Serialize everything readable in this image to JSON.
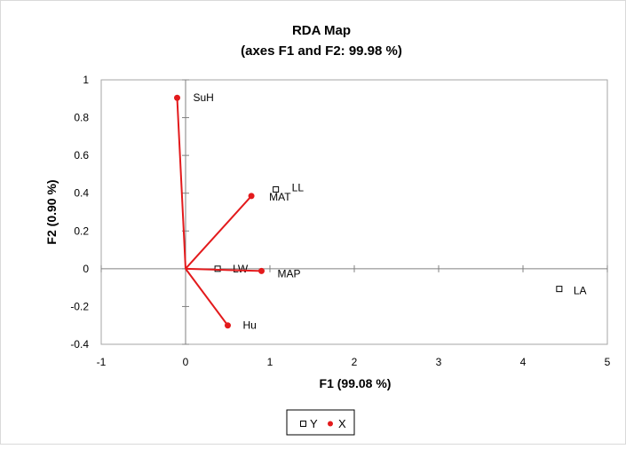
{
  "chart_data": {
    "type": "scatter",
    "title": "RDA Map",
    "subtitle": "(axes F1 and F2: 99.98 %)",
    "xlabel": "F1 (99.08 %)",
    "ylabel": "F2 (0.90 %)",
    "xlim": [
      -1,
      5
    ],
    "ylim": [
      -0.4,
      1
    ],
    "x_ticks": [
      "-1",
      "0",
      "1",
      "2",
      "3",
      "4",
      "5"
    ],
    "y_ticks": [
      "-0.4",
      "-0.2",
      "0",
      "0.2",
      "0.4",
      "0.6",
      "0.8",
      "1"
    ],
    "grid": false,
    "legend_position": "bottom",
    "series": [
      {
        "name": "Y",
        "marker": "hollow-square",
        "color": "#000000",
        "points": [
          {
            "label": "LL",
            "x": 1.07,
            "y": 0.42
          },
          {
            "label": "LW",
            "x": 0.38,
            "y": 0.0
          },
          {
            "label": "LA",
            "x": 4.43,
            "y": -0.107
          }
        ]
      },
      {
        "name": "X",
        "marker": "filled-circle",
        "color": "#e31a1c",
        "vectors_from_origin": true,
        "points": [
          {
            "label": "SuH",
            "x": -0.1,
            "y": 0.905
          },
          {
            "label": "MAT",
            "x": 0.78,
            "y": 0.385
          },
          {
            "label": "MAP",
            "x": 0.9,
            "y": -0.012
          },
          {
            "label": "Hu",
            "x": 0.5,
            "y": -0.3
          }
        ]
      }
    ]
  }
}
